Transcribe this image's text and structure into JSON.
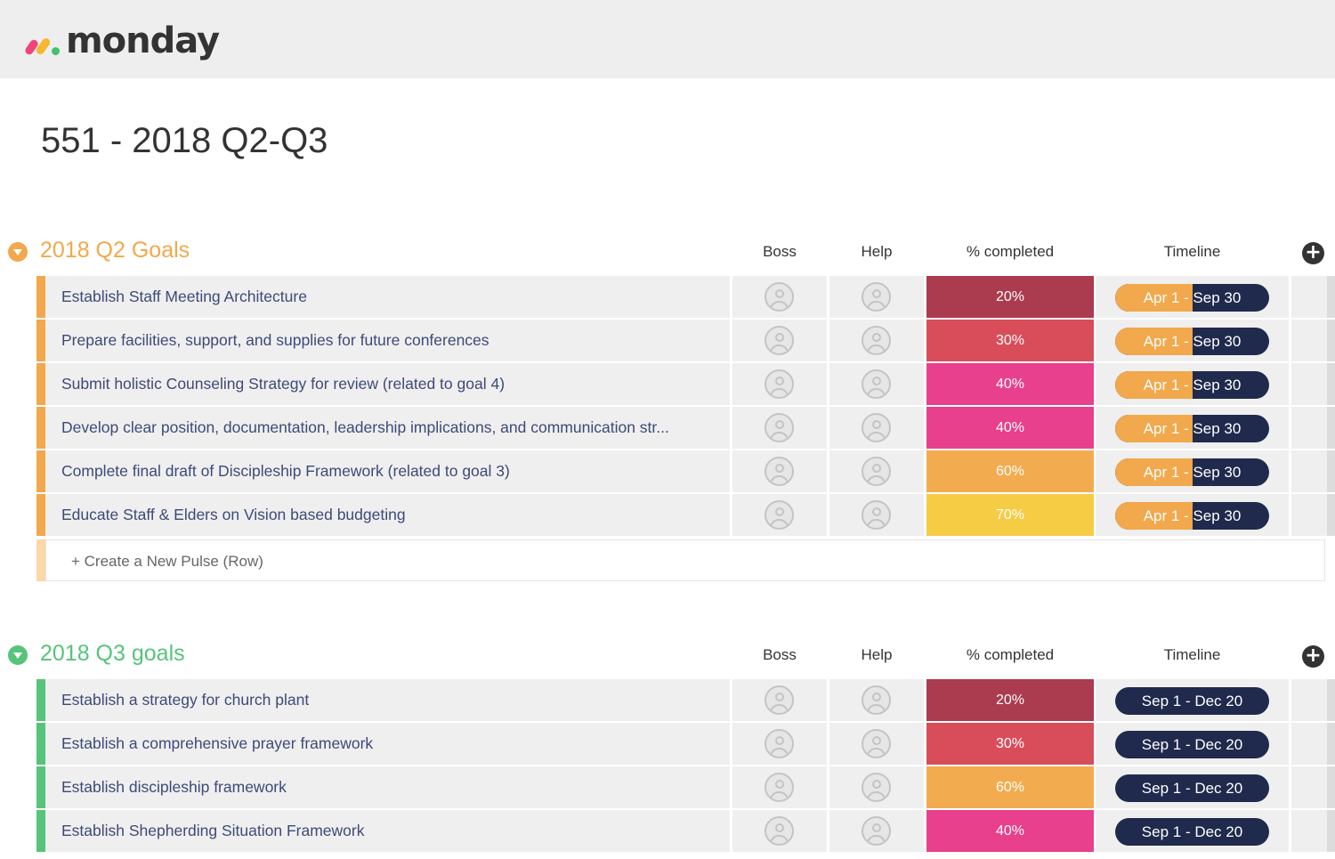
{
  "app": {
    "brand": "monday"
  },
  "board": {
    "title": "551 - 2018 Q2-Q3"
  },
  "columns": {
    "boss": "Boss",
    "help": "Help",
    "pct": "% completed",
    "timeline": "Timeline"
  },
  "colors": {
    "q2_group": "#f2a84c",
    "q3_group": "#56c47a",
    "pct_20": "#ab3b4e",
    "pct_30": "#d94d5b",
    "pct_40": "#e8408c",
    "pct_60": "#f2ac4f",
    "pct_70": "#f6cc45",
    "timeline_dark": "#1f2a4d"
  },
  "groups": [
    {
      "name": "2018 Q2 Goals",
      "rows": [
        {
          "name": "Establish Staff Meeting Architecture",
          "pct": "20%",
          "timeline": "Apr 1 - Sep 30",
          "timeline_progress": 0.5
        },
        {
          "name": "Prepare facilities, support, and supplies for future conferences",
          "pct": "30%",
          "timeline": "Apr 1 - Sep 30",
          "timeline_progress": 0.5
        },
        {
          "name": "Submit holistic Counseling Strategy for review (related to goal 4)",
          "pct": "40%",
          "timeline": "Apr 1 - Sep 30",
          "timeline_progress": 0.5
        },
        {
          "name": "Develop clear position, documentation, leadership implications, and communication str...",
          "pct": "40%",
          "timeline": "Apr 1 - Sep 30",
          "timeline_progress": 0.5
        },
        {
          "name": "Complete final draft of Discipleship Framework (related to goal 3)",
          "pct": "60%",
          "timeline": "Apr 1 - Sep 30",
          "timeline_progress": 0.5
        },
        {
          "name": "Educate Staff & Elders on Vision based budgeting",
          "pct": "70%",
          "timeline": "Apr 1 - Sep 30",
          "timeline_progress": 0.5
        }
      ],
      "create_label": "+ Create a New Pulse (Row)"
    },
    {
      "name": "2018 Q3 goals",
      "rows": [
        {
          "name": "Establish a strategy for church plant",
          "pct": "20%",
          "timeline": "Sep 1 - Dec 20",
          "timeline_progress": 0
        },
        {
          "name": "Establish a comprehensive prayer framework",
          "pct": "30%",
          "timeline": "Sep 1 - Dec 20",
          "timeline_progress": 0
        },
        {
          "name": "Establish discipleship framework",
          "pct": "60%",
          "timeline": "Sep 1 - Dec 20",
          "timeline_progress": 0
        },
        {
          "name": "Establish Shepherding Situation Framework",
          "pct": "40%",
          "timeline": "Sep 1 - Dec 20",
          "timeline_progress": 0
        }
      ]
    }
  ]
}
